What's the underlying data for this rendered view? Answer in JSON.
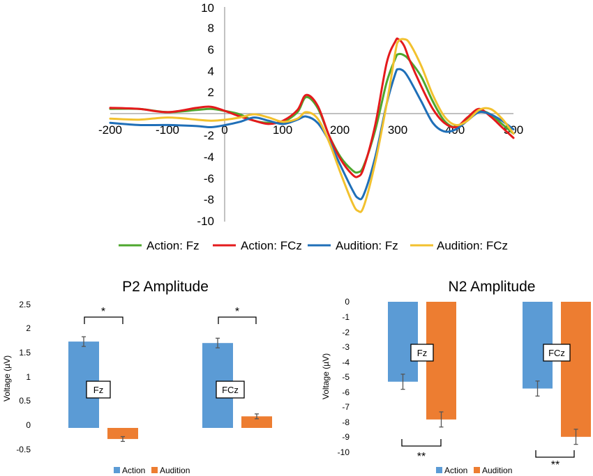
{
  "chart_data": [
    {
      "type": "line",
      "title": "",
      "xlabel": "",
      "ylabel": "",
      "xlim": [
        -200,
        500
      ],
      "ylim": [
        -10,
        10
      ],
      "x_ticks": [
        "-200",
        "-100",
        "0",
        "100",
        "200",
        "300",
        "400",
        "500"
      ],
      "y_ticks": [
        "10",
        "8",
        "6",
        "4",
        "2",
        "-2",
        "-4",
        "-6",
        "-8",
        "-10"
      ],
      "x": [
        -200,
        -150,
        -100,
        -50,
        -25,
        0,
        25,
        50,
        75,
        100,
        125,
        140,
        160,
        180,
        200,
        220,
        230,
        240,
        260,
        280,
        295,
        300,
        310,
        320,
        340,
        360,
        380,
        400,
        420,
        440,
        460,
        480,
        500
      ],
      "series": [
        {
          "name": "Action: Fz",
          "color": "#4ea72e",
          "values": [
            0.5,
            0.5,
            0.2,
            0.4,
            0.5,
            0.3,
            0.0,
            -0.6,
            -0.8,
            -0.7,
            0.2,
            1.6,
            0.6,
            -2.0,
            -4.0,
            -5.2,
            -5.4,
            -4.8,
            -1.5,
            3.0,
            5.2,
            5.6,
            5.5,
            5.0,
            3.5,
            1.2,
            -0.6,
            -1.2,
            -0.5,
            0.3,
            0.0,
            -0.9,
            -1.8
          ]
        },
        {
          "name": "Action: FCz",
          "color": "#e41a1c",
          "values": [
            0.6,
            0.5,
            0.2,
            0.6,
            0.7,
            0.3,
            -0.2,
            -0.6,
            -0.9,
            -0.6,
            0.4,
            1.8,
            0.8,
            -2.0,
            -4.2,
            -5.6,
            -5.8,
            -5.0,
            -1.0,
            4.8,
            6.8,
            7.0,
            6.4,
            5.0,
            2.6,
            0.5,
            -0.8,
            -1.2,
            -0.3,
            0.5,
            -0.2,
            -1.2,
            -2.2
          ]
        },
        {
          "name": "Audition: Fz",
          "color": "#1f6fb8",
          "values": [
            -0.8,
            -1.0,
            -1.0,
            -1.1,
            -1.2,
            -1.0,
            -0.7,
            -0.3,
            -0.6,
            -0.9,
            -0.5,
            -0.2,
            -0.8,
            -2.5,
            -4.8,
            -7.0,
            -7.8,
            -7.5,
            -4.0,
            1.0,
            3.8,
            4.2,
            4.0,
            3.2,
            1.2,
            -0.8,
            -1.6,
            -1.4,
            -0.6,
            0.2,
            0.0,
            -0.6,
            -1.4
          ]
        },
        {
          "name": "Audition: FCz",
          "color": "#f2c12e",
          "values": [
            -0.4,
            -0.5,
            -0.3,
            -0.5,
            -0.6,
            -0.5,
            -0.3,
            0.0,
            -0.3,
            -0.7,
            -0.4,
            0.2,
            -0.4,
            -2.6,
            -5.5,
            -8.2,
            -9.0,
            -8.6,
            -4.5,
            1.0,
            5.8,
            6.8,
            7.0,
            6.6,
            4.5,
            1.8,
            -0.2,
            -1.0,
            -0.6,
            0.4,
            0.5,
            -0.4,
            -1.8
          ]
        }
      ]
    },
    {
      "type": "bar",
      "title": "P2 Amplitude",
      "ylabel": "Voltage (µV)",
      "ylim": [
        -0.5,
        2.5
      ],
      "y_ticks": [
        "2.5",
        "2",
        "1.5",
        "1",
        "0.5",
        "0",
        "-0.5"
      ],
      "categories": [
        "Fz",
        "FCz"
      ],
      "series": [
        {
          "name": "Action",
          "color": "#5b9bd5",
          "values": [
            1.79,
            1.76
          ],
          "errors": [
            0.1,
            0.1
          ]
        },
        {
          "name": "Audition",
          "color": "#ed7d31",
          "values": [
            -0.23,
            0.24
          ],
          "errors": [
            0.05,
            0.05
          ]
        }
      ],
      "significance": [
        "*",
        "*"
      ],
      "legend": [
        "Action",
        "Audition"
      ]
    },
    {
      "type": "bar",
      "title": "N2 Amplitude",
      "ylabel": "Voltage (µV)",
      "ylim": [
        -10,
        0
      ],
      "y_ticks": [
        "0",
        "-1",
        "-2",
        "-3",
        "-4",
        "-5",
        "-6",
        "-7",
        "-8",
        "-9",
        "-10"
      ],
      "categories": [
        "Fz",
        "FCz"
      ],
      "series": [
        {
          "name": "Action",
          "color": "#5b9bd5",
          "values": [
            -5.3,
            -5.75
          ],
          "errors": [
            0.5,
            0.5
          ]
        },
        {
          "name": "Audition",
          "color": "#ed7d31",
          "values": [
            -7.8,
            -8.95
          ],
          "errors": [
            0.5,
            0.5
          ]
        }
      ],
      "significance": [
        "**",
        "**"
      ],
      "legend": [
        "Action",
        "Audition"
      ]
    }
  ]
}
